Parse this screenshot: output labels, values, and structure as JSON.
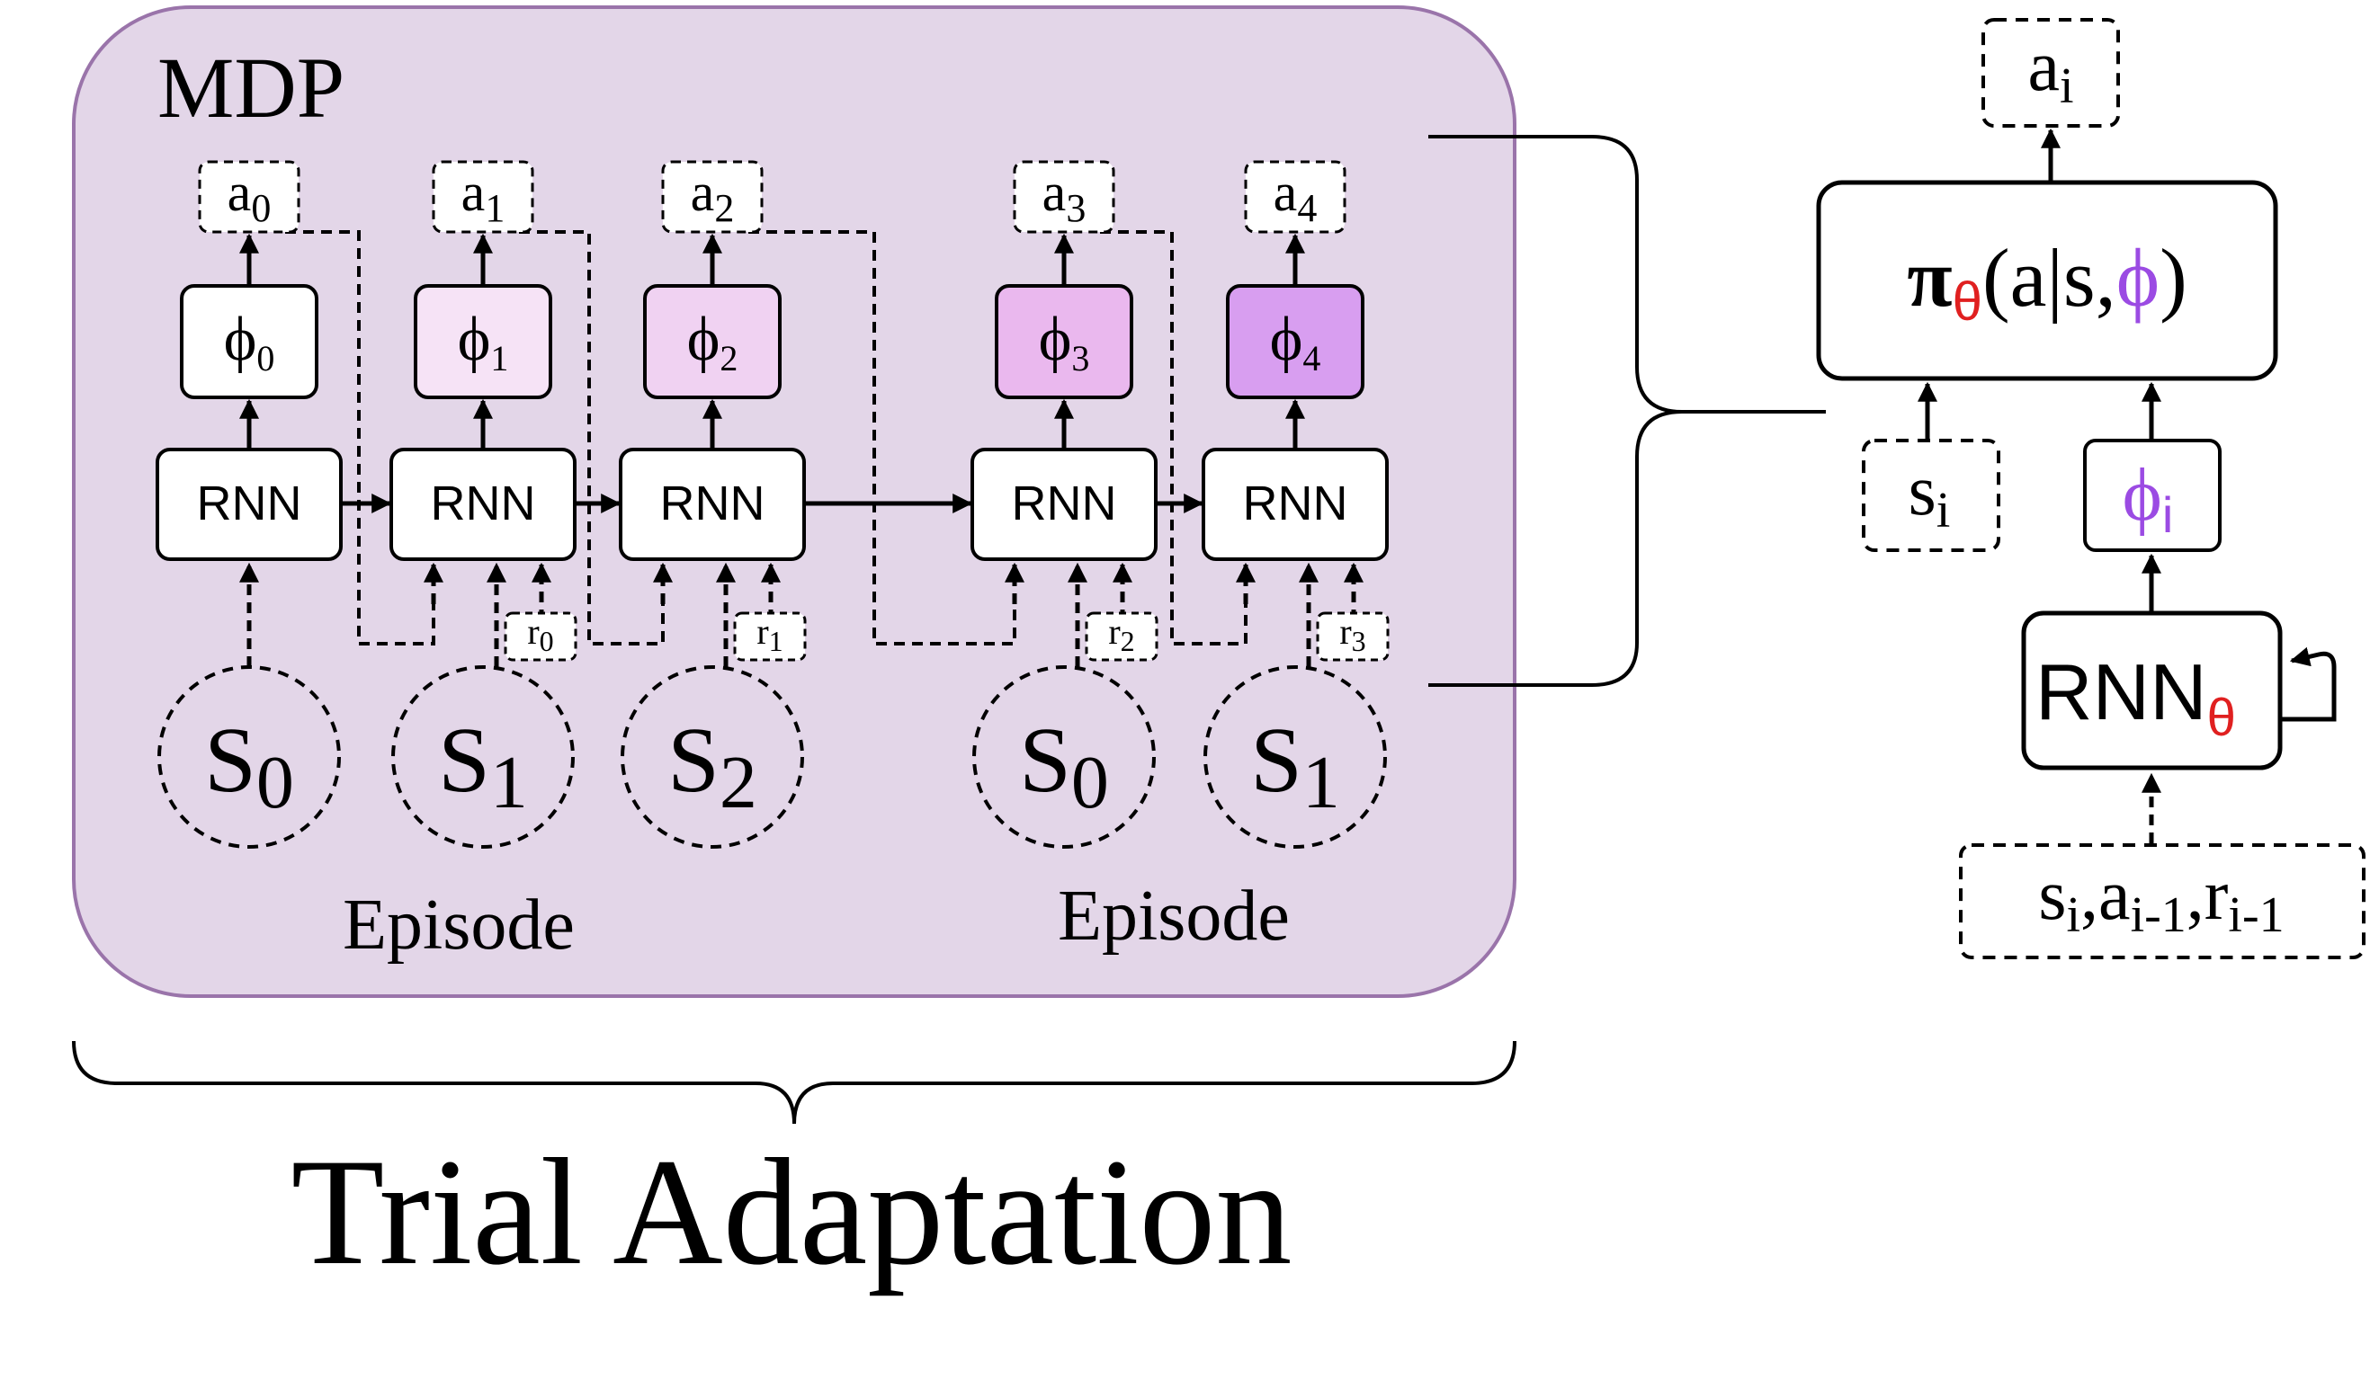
{
  "colors": {
    "panel_fill": "#e3d6e8",
    "panel_stroke": "#9a74aa",
    "phi_fills": [
      "#ffffff",
      "#f6e3f6",
      "#f0d2f2",
      "#eab8ee",
      "#d89ef0"
    ],
    "theta_red": "#e02020",
    "phi_purple": "#9b4be3",
    "line": "#000000"
  },
  "mdp_label": "MDP",
  "episode_labels": [
    "Episode",
    "Episode"
  ],
  "steps": [
    {
      "phi": "ϕ",
      "phi_sub": "0",
      "rnn": "RNN",
      "action": "a",
      "action_sub": "0",
      "reward": "",
      "reward_sub": "",
      "state": "S",
      "state_sub": "0"
    },
    {
      "phi": "ϕ",
      "phi_sub": "1",
      "rnn": "RNN",
      "action": "a",
      "action_sub": "1",
      "reward": "r",
      "reward_sub": "0",
      "state": "S",
      "state_sub": "1"
    },
    {
      "phi": "ϕ",
      "phi_sub": "2",
      "rnn": "RNN",
      "action": "a",
      "action_sub": "2",
      "reward": "r",
      "reward_sub": "1",
      "state": "S",
      "state_sub": "2"
    },
    {
      "phi": "ϕ",
      "phi_sub": "3",
      "rnn": "RNN",
      "action": "a",
      "action_sub": "3",
      "reward": "r",
      "reward_sub": "2",
      "state": "S",
      "state_sub": "0"
    },
    {
      "phi": "ϕ",
      "phi_sub": "4",
      "rnn": "RNN",
      "action": "a",
      "action_sub": "4",
      "reward": "r",
      "reward_sub": "3",
      "state": "S",
      "state_sub": "1"
    }
  ],
  "trial_label": "Trial Adaptation",
  "detail": {
    "output": {
      "main": "a",
      "sub": "i"
    },
    "policy": {
      "pi": "π",
      "theta": "θ",
      "open": "(a|s,",
      "phi": "ϕ",
      "close": ")"
    },
    "state_in": {
      "main": "s",
      "sub": "i"
    },
    "latent": {
      "main": "ϕ",
      "sub": "i"
    },
    "rnn": {
      "main": "RNN",
      "theta": "θ"
    },
    "input": {
      "s": "s",
      "s_sub": "i",
      "a": "a",
      "a_sub": "i-1",
      "r": "r",
      "r_sub": "i-1",
      "sep": ","
    }
  }
}
